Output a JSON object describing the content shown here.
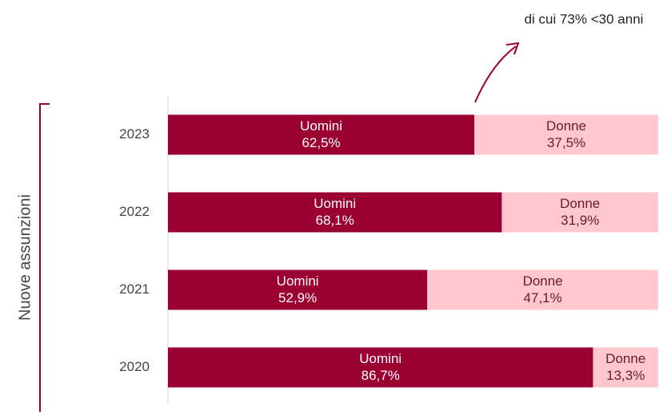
{
  "chart_data": {
    "type": "stacked_barh",
    "annotation": "di cui 73% <30 anni",
    "y_label": "Nuove assunzioni",
    "categories": [
      "2023",
      "2022",
      "2021",
      "2020"
    ],
    "xlim": [
      0,
      100
    ],
    "series": [
      {
        "name": "Uomini",
        "color": "#9b0033",
        "values": [
          62.5,
          68.1,
          52.9,
          86.7
        ],
        "value_labels": [
          "62,5%",
          "68,1%",
          "52,9%",
          "86,7%"
        ]
      },
      {
        "name": "Donne",
        "color": "#ffc7ce",
        "values": [
          37.5,
          31.9,
          47.1,
          13.3
        ],
        "value_labels": [
          "37,5%",
          "31,9%",
          "47,1%",
          "13,3%"
        ]
      }
    ]
  }
}
